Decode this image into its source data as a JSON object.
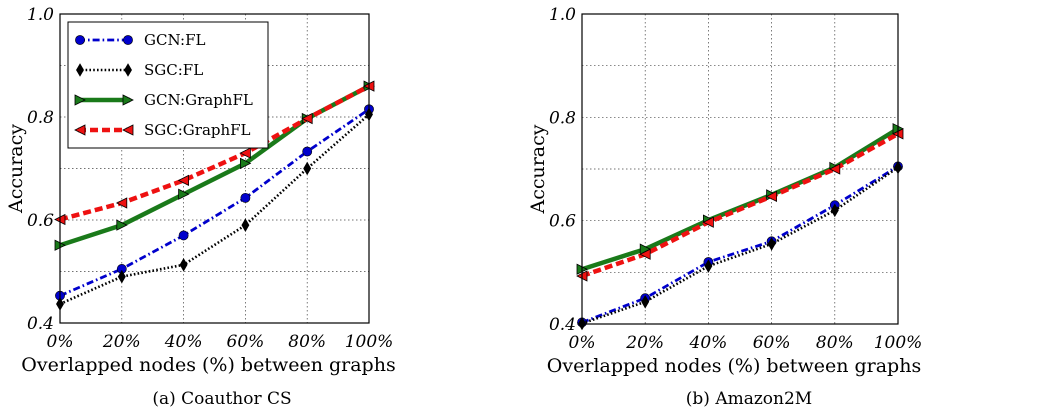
{
  "chart_data": [
    {
      "type": "line",
      "caption": "(a) Coauthor CS",
      "xlabel": "Overlapped nodes (%) between graphs",
      "ylabel": "Accuracy",
      "categories": [
        "0%",
        "20%",
        "40%",
        "60%",
        "80%",
        "100%"
      ],
      "yticks": [
        "0.4",
        "0.6",
        "0.8",
        "1.0"
      ],
      "ylim": [
        0.4,
        1.0
      ],
      "grid": true,
      "legend": "top-left",
      "series": [
        {
          "name": "GCN:FL",
          "color": "#0000cc",
          "style": "dashdot",
          "marker": "circle",
          "values": [
            0.453,
            0.505,
            0.57,
            0.643,
            0.733,
            0.815
          ]
        },
        {
          "name": "SGC:FL",
          "color": "#000000",
          "style": "dotted",
          "marker": "diamond",
          "values": [
            0.437,
            0.49,
            0.513,
            0.59,
            0.7,
            0.805
          ]
        },
        {
          "name": "GCN:GraphFL",
          "color": "#1a7a1a",
          "style": "solid",
          "marker": "triangle-right",
          "values": [
            0.551,
            0.59,
            0.65,
            0.71,
            0.797,
            0.86
          ]
        },
        {
          "name": "SGC:GraphFL",
          "color": "#ee1111",
          "style": "dashed",
          "marker": "triangle-left",
          "values": [
            0.601,
            0.633,
            0.677,
            0.73,
            0.797,
            0.86
          ]
        }
      ]
    },
    {
      "type": "line",
      "caption": "(b) Amazon2M",
      "xlabel": "Overlapped nodes (%) between graphs",
      "ylabel": "Accuracy",
      "categories": [
        "0%",
        "20%",
        "40%",
        "60%",
        "80%",
        "100%"
      ],
      "yticks": [
        "0.4",
        "0.6",
        "0.8",
        "1.0"
      ],
      "ylim": [
        0.4,
        1.0
      ],
      "grid": true,
      "legend": "none",
      "series": [
        {
          "name": "GCN:FL",
          "color": "#0000cc",
          "style": "dashdot",
          "marker": "circle",
          "values": [
            0.403,
            0.45,
            0.52,
            0.56,
            0.63,
            0.705
          ]
        },
        {
          "name": "SGC:FL",
          "color": "#000000",
          "style": "dotted",
          "marker": "diamond",
          "values": [
            0.401,
            0.443,
            0.512,
            0.555,
            0.62,
            0.703
          ]
        },
        {
          "name": "GCN:GraphFL",
          "color": "#1a7a1a",
          "style": "solid",
          "marker": "triangle-right",
          "values": [
            0.506,
            0.545,
            0.601,
            0.65,
            0.703,
            0.778
          ]
        },
        {
          "name": "SGC:GraphFL",
          "color": "#ee1111",
          "style": "dashed",
          "marker": "triangle-left",
          "values": [
            0.493,
            0.535,
            0.597,
            0.647,
            0.7,
            0.768
          ]
        }
      ]
    }
  ]
}
